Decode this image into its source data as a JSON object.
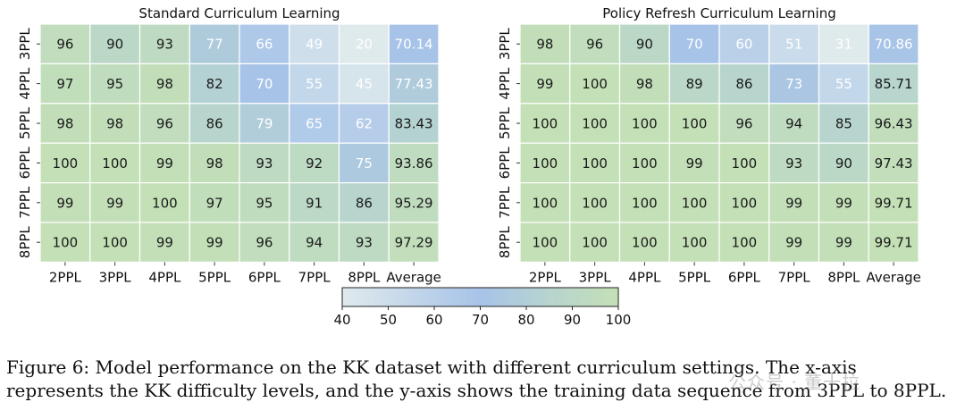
{
  "chart_data": [
    {
      "type": "heatmap",
      "title": "Standard Curriculum Learning",
      "columns": [
        "2PPL",
        "3PPL",
        "4PPL",
        "5PPL",
        "6PPL",
        "7PPL",
        "8PPL",
        "Average"
      ],
      "rows": [
        "3PPL",
        "4PPL",
        "5PPL",
        "6PPL",
        "7PPL",
        "8PPL"
      ],
      "values": [
        [
          96,
          90,
          93,
          77,
          66,
          49,
          20,
          70.14
        ],
        [
          97,
          95,
          98,
          82,
          70,
          55,
          45,
          77.43
        ],
        [
          98,
          98,
          96,
          86,
          79,
          65,
          62,
          83.43
        ],
        [
          100,
          100,
          99,
          98,
          93,
          92,
          75,
          93.86
        ],
        [
          99,
          99,
          100,
          97,
          95,
          91,
          86,
          95.29
        ],
        [
          100,
          100,
          99,
          99,
          96,
          94,
          93,
          97.29
        ]
      ],
      "labels": [
        [
          "96",
          "90",
          "93",
          "77",
          "66",
          "49",
          "20",
          "70.14"
        ],
        [
          "97",
          "95",
          "98",
          "82",
          "70",
          "55",
          "45",
          "77.43"
        ],
        [
          "98",
          "98",
          "96",
          "86",
          "79",
          "65",
          "62",
          "83.43"
        ],
        [
          "100",
          "100",
          "99",
          "98",
          "93",
          "92",
          "75",
          "93.86"
        ],
        [
          "99",
          "99",
          "100",
          "97",
          "95",
          "91",
          "86",
          "95.29"
        ],
        [
          "100",
          "100",
          "99",
          "99",
          "96",
          "94",
          "93",
          "97.29"
        ]
      ]
    },
    {
      "type": "heatmap",
      "title": "Policy Refresh Curriculum Learning",
      "columns": [
        "2PPL",
        "3PPL",
        "4PPL",
        "5PPL",
        "6PPL",
        "7PPL",
        "8PPL",
        "Average"
      ],
      "rows": [
        "3PPL",
        "4PPL",
        "5PPL",
        "6PPL",
        "7PPL",
        "8PPL"
      ],
      "values": [
        [
          98,
          96,
          90,
          70,
          60,
          51,
          31,
          70.86
        ],
        [
          99,
          100,
          98,
          89,
          86,
          73,
          55,
          85.71
        ],
        [
          100,
          100,
          100,
          100,
          96,
          94,
          85,
          96.43
        ],
        [
          100,
          100,
          100,
          99,
          100,
          93,
          90,
          97.43
        ],
        [
          100,
          100,
          100,
          100,
          100,
          99,
          99,
          99.71
        ],
        [
          100,
          100,
          100,
          100,
          100,
          99,
          99,
          99.71
        ]
      ],
      "labels": [
        [
          "98",
          "96",
          "90",
          "70",
          "60",
          "51",
          "31",
          "70.86"
        ],
        [
          "99",
          "100",
          "98",
          "89",
          "86",
          "73",
          "55",
          "85.71"
        ],
        [
          "100",
          "100",
          "100",
          "100",
          "96",
          "94",
          "85",
          "96.43"
        ],
        [
          "100",
          "100",
          "100",
          "99",
          "100",
          "93",
          "90",
          "97.43"
        ],
        [
          "100",
          "100",
          "100",
          "100",
          "100",
          "99",
          "99",
          "99.71"
        ],
        [
          "100",
          "100",
          "100",
          "100",
          "100",
          "99",
          "99",
          "99.71"
        ]
      ]
    }
  ],
  "colorbar": {
    "ticks": [
      "40",
      "50",
      "60",
      "70",
      "80",
      "90",
      "100"
    ],
    "range": [
      40,
      100
    ],
    "stops": [
      {
        "value": 40,
        "color": "#dfeaec"
      },
      {
        "value": 70,
        "color": "#a7c3e8"
      },
      {
        "value": 85,
        "color": "#b7d4cf"
      },
      {
        "value": 100,
        "color": "#c4e0b6"
      }
    ]
  },
  "caption": {
    "line1": "Figure 6: Model performance on the KK dataset with different curriculum settings. The x-axis",
    "line2": "represents the KK difficulty levels, and the y-axis shows the training data sequence from 3PPL to 8PPL."
  },
  "watermark": "公众号 · 董十拉"
}
